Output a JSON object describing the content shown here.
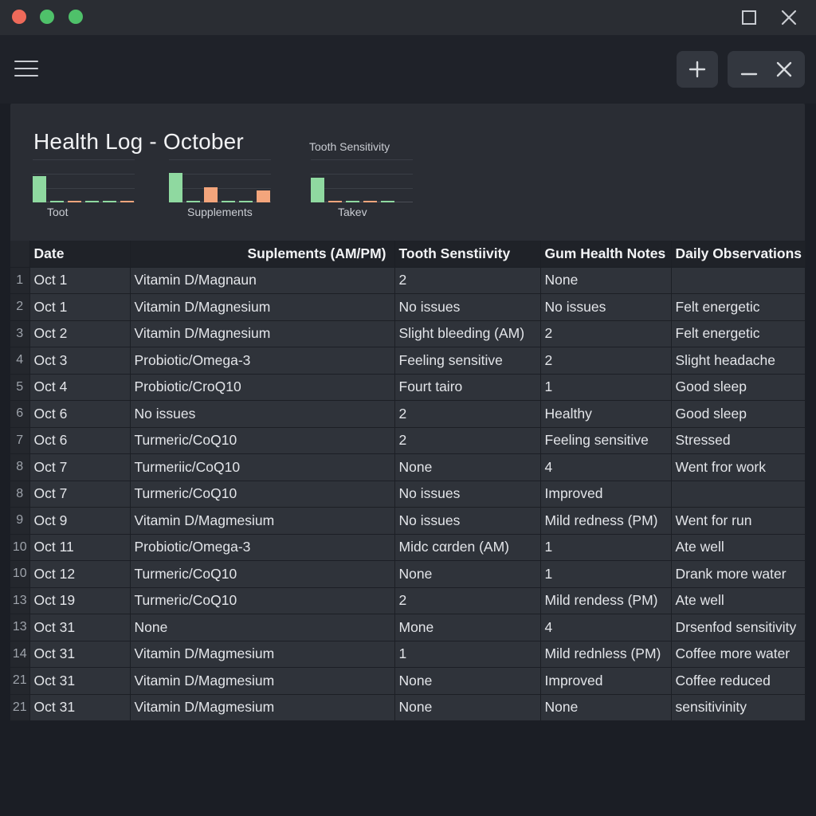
{
  "window": {
    "title_controls": [
      "close",
      "minimize",
      "zoom"
    ]
  },
  "colors": {
    "background": "#1b1e25",
    "panel": "#2a2d34",
    "bar_green": "#8fd9a0",
    "bar_orange": "#f3a57c",
    "traffic_red": "#ee6a5a",
    "traffic_green": "#4fc16a"
  },
  "toolbar": {
    "menu_icon": "hamburger-icon",
    "add_icon": "plus-icon",
    "minimize_icon": "minus-icon",
    "close_icon": "close-icon"
  },
  "page": {
    "title": "Health Log - October"
  },
  "mini_charts": [
    {
      "title": "",
      "label": "Toot",
      "values": [
        0.62,
        0.03,
        0.04,
        0.02,
        0.0,
        0.04
      ],
      "colors": [
        "green",
        "green",
        "orange",
        "green",
        "green",
        "orange"
      ]
    },
    {
      "title": "",
      "label": "Supplements",
      "values": [
        0.68,
        0.04,
        0.35,
        0.02,
        0.04,
        0.28
      ],
      "colors": [
        "green",
        "green",
        "orange",
        "green",
        "green",
        "orange"
      ]
    },
    {
      "title": "Tooth Sensitivity",
      "label": "Takev",
      "values": [
        0.58,
        0.03,
        0.02,
        0.03,
        0.02
      ],
      "colors": [
        "green",
        "orange",
        "green",
        "orange",
        "green"
      ]
    }
  ],
  "table": {
    "headers": [
      "",
      "Date",
      "Suplements (AM/PM)",
      "Tooth Senstiivity",
      "Gum Health Notes",
      "Daily Observations"
    ],
    "rows": [
      [
        "1",
        "Oct 1",
        "Vitamin D/Magnaun",
        "2",
        "None",
        ""
      ],
      [
        "2",
        "Oct 1",
        "Vitamin D/Magnesium",
        "No issues",
        "No issues",
        "Felt energetic"
      ],
      [
        "3",
        "Oct 2",
        "Vitamin D/Magnesium",
        "Slight bleeding (AM)",
        "2",
        "Felt energetic"
      ],
      [
        "4",
        "Oct 3",
        "Probiotic/Omega-3",
        "Feeling sensitive",
        "2",
        "Slight headache"
      ],
      [
        "5",
        "Oct 4",
        "Probiotic/CroQ10",
        "Fourt tairo",
        "1",
        "Good sleep"
      ],
      [
        "6",
        "Oct 6",
        "No issues",
        "2",
        "Healthy",
        "Good sleep"
      ],
      [
        "7",
        "Oct 6",
        "Turmeric/CoQ10",
        "2",
        "Feeling sensitive",
        "Stressed"
      ],
      [
        "8",
        "Oct 7",
        "Turmeriic/CoQ10",
        "None",
        "4",
        "Went fror work"
      ],
      [
        "8",
        "Oct 7",
        "Turmeric/CoQ10",
        "No issues",
        "Improved",
        ""
      ],
      [
        "9",
        "Oct 9",
        "Vitamin D/Magmesium",
        "No issues",
        "Mild redness (PM)",
        "Went for run"
      ],
      [
        "10",
        "Oct 11",
        "Probiotic/Omega-3",
        "Midc cαrden (AM)",
        "1",
        "Ate well"
      ],
      [
        "10",
        "Oct 12",
        "Turmeric/CoQ10",
        "None",
        "1",
        "Drank more water"
      ],
      [
        "13",
        "Oct 19",
        "Turmeric/CoQ10",
        "2",
        "Mild rendess (PM)",
        "Ate well"
      ],
      [
        "13",
        "Oct 31",
        "None",
        "Mone",
        "4",
        "Drsenfod sensitivity"
      ],
      [
        "14",
        "Oct 31",
        "Vitamin D/Magmesium",
        "1",
        "Mild rednless (PM)",
        "Coffee more water"
      ],
      [
        "21",
        "Oct 31",
        "Vitamin D/Magmesium",
        "None",
        "Improved",
        "Coffee reduced"
      ],
      [
        "21",
        "Oct 31",
        "Vitamin D/Magmesium",
        "None",
        "None",
        "sensitivinity"
      ]
    ]
  }
}
